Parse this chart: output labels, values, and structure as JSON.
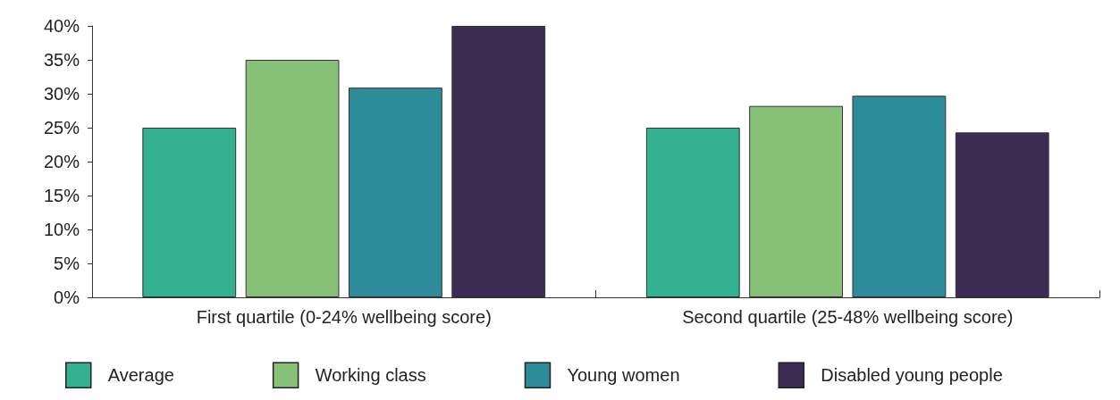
{
  "chart_data": {
    "type": "bar",
    "categories": [
      "First quartile (0-24% wellbeing score)",
      "Second quartile (25-48% wellbeing score)"
    ],
    "series": [
      {
        "name": "Average",
        "color": "#33b08f",
        "values": [
          25,
          25
        ]
      },
      {
        "name": "Working class",
        "color": "#86c177",
        "values": [
          35,
          28.2
        ]
      },
      {
        "name": "Young women",
        "color": "#2d8b9a",
        "values": [
          30.9,
          29.7
        ]
      },
      {
        "name": "Disabled young people",
        "color": "#3c2b52",
        "values": [
          40,
          24.3
        ]
      }
    ],
    "ylim": [
      0,
      40
    ],
    "yticks": [
      {
        "value": 0,
        "label": "0%"
      },
      {
        "value": 5,
        "label": "5%"
      },
      {
        "value": 10,
        "label": "10%"
      },
      {
        "value": 15,
        "label": "15%"
      },
      {
        "value": 20,
        "label": "20%"
      },
      {
        "value": 25,
        "label": "25%"
      },
      {
        "value": 30,
        "label": "30%"
      },
      {
        "value": 35,
        "label": "35%"
      },
      {
        "value": 40,
        "label": "40%"
      }
    ],
    "grid": false,
    "legend": "bottom"
  }
}
